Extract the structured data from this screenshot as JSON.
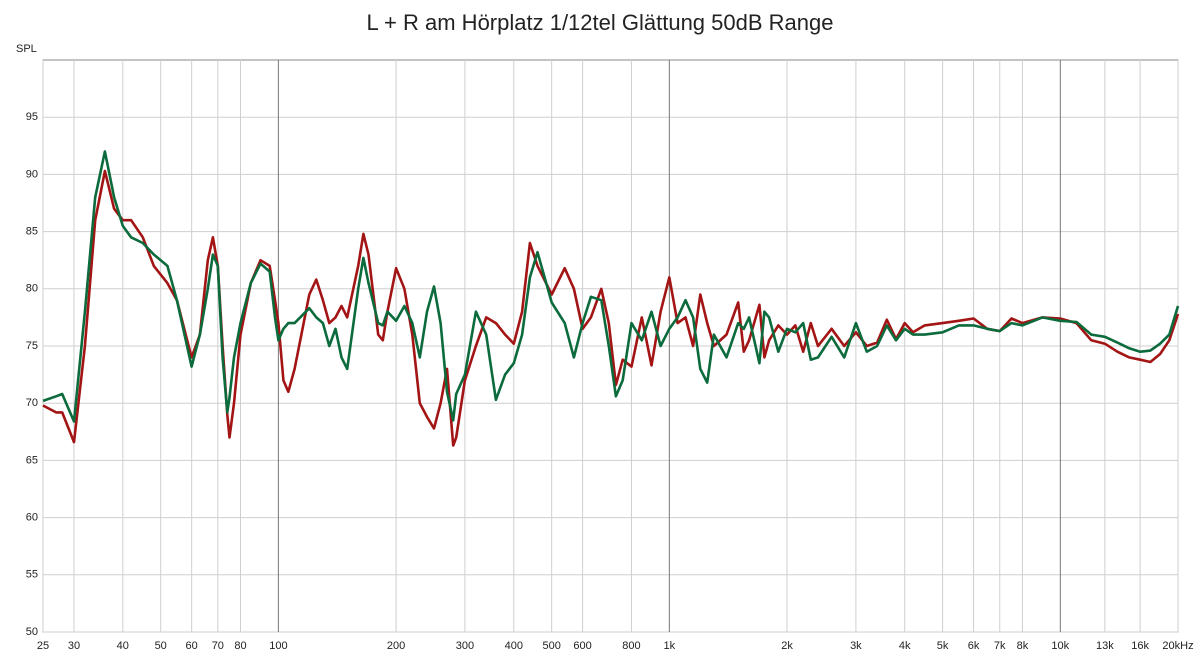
{
  "chart_data": {
    "type": "line",
    "title": "L + R am Hörplatz 1/12tel Glättung 50dB Range",
    "y_label": "SPL",
    "log_x": true,
    "grid": true,
    "xlim": [
      25,
      20000
    ],
    "ylim": [
      50,
      100
    ],
    "xticks": [
      25,
      30,
      40,
      50,
      60,
      70,
      80,
      100,
      200,
      300,
      400,
      500,
      600,
      800,
      {
        "value": 1000,
        "label": "1k"
      },
      {
        "value": 2000,
        "label": "2k"
      },
      {
        "value": 3000,
        "label": "3k"
      },
      {
        "value": 4000,
        "label": "4k"
      },
      {
        "value": 5000,
        "label": "5k"
      },
      {
        "value": 6000,
        "label": "6k"
      },
      {
        "value": 7000,
        "label": "7k"
      },
      {
        "value": 8000,
        "label": "8k"
      },
      {
        "value": 10000,
        "label": "10k"
      },
      {
        "value": 13000,
        "label": "13k"
      },
      {
        "value": 16000,
        "label": "16k"
      },
      {
        "value": 20000,
        "label": "20kHz"
      }
    ],
    "yticks": [
      50,
      55,
      60,
      65,
      70,
      75,
      80,
      85,
      90,
      95
    ],
    "x": [
      25,
      27,
      28,
      30,
      32,
      34,
      36,
      38,
      40,
      42,
      45,
      48,
      52,
      55,
      60,
      63,
      66,
      68,
      70,
      72,
      74,
      75,
      77,
      80,
      85,
      90,
      95,
      98,
      100,
      103,
      106,
      110,
      120,
      125,
      130,
      135,
      140,
      145,
      150,
      160,
      165,
      170,
      180,
      185,
      190,
      200,
      210,
      220,
      230,
      240,
      250,
      260,
      270,
      280,
      285,
      300,
      320,
      340,
      360,
      380,
      400,
      420,
      440,
      460,
      500,
      540,
      570,
      600,
      630,
      670,
      700,
      730,
      760,
      800,
      850,
      900,
      950,
      1000,
      1050,
      1100,
      1150,
      1200,
      1250,
      1300,
      1400,
      1500,
      1550,
      1600,
      1700,
      1750,
      1800,
      1900,
      2000,
      2100,
      2200,
      2300,
      2400,
      2600,
      2800,
      3000,
      3200,
      3400,
      3600,
      3800,
      4000,
      4200,
      4500,
      5000,
      5500,
      6000,
      6500,
      7000,
      7500,
      8000,
      9000,
      10000,
      11000,
      12000,
      13000,
      14000,
      15000,
      16000,
      17000,
      18000,
      19000,
      20000
    ],
    "series": [
      {
        "color": "#a31414",
        "values": [
          69.8,
          69.2,
          69.2,
          66.6,
          75,
          86,
          90.3,
          87,
          86,
          86,
          84.5,
          82,
          80.5,
          79,
          74,
          76,
          82.5,
          84.5,
          82,
          75,
          69,
          67,
          70,
          76,
          80.5,
          82.5,
          82,
          79,
          77,
          72,
          71,
          73,
          79.5,
          80.8,
          79,
          77,
          77.5,
          78.5,
          77.5,
          82,
          84.8,
          83,
          76,
          75.5,
          78,
          81.8,
          80,
          76,
          70,
          68.8,
          67.8,
          70,
          73,
          66.3,
          67,
          72,
          75,
          77.5,
          77,
          76,
          75.2,
          78,
          84,
          82,
          79.5,
          81.8,
          80,
          76.5,
          77.5,
          80,
          77,
          71.6,
          73.8,
          73.2,
          77.5,
          73.3,
          78,
          81,
          77,
          77.5,
          75,
          79.5,
          77,
          75,
          76,
          78.8,
          74.5,
          75.5,
          78.6,
          74,
          75.5,
          76.8,
          76,
          76.8,
          74.5,
          77,
          75,
          76.5,
          75,
          76.2,
          75,
          75.3,
          77.3,
          75.6,
          77,
          76.2,
          76.8,
          77,
          77.2,
          77.4,
          76.5,
          76.3,
          77.4,
          77,
          77.5,
          77.4,
          77,
          75.5,
          75.2,
          74.5,
          74,
          73.8,
          73.6,
          74.3,
          75.5,
          77.8
        ]
      },
      {
        "color": "#0b6b3c",
        "values": [
          70.2,
          70.6,
          70.8,
          68.4,
          78,
          88,
          92,
          88,
          85.5,
          84.5,
          84,
          83,
          82,
          79,
          73.2,
          76,
          80,
          83,
          82,
          74,
          69.2,
          70.5,
          74,
          77,
          80.5,
          82.2,
          81.5,
          77.5,
          75.5,
          76.5,
          77,
          77,
          78.3,
          77.5,
          77,
          75,
          76.5,
          74,
          73,
          80,
          82.7,
          80.5,
          77,
          76.8,
          78,
          77.2,
          78.5,
          77,
          74,
          78,
          80.2,
          77,
          71,
          68.5,
          70.8,
          72.5,
          78,
          76,
          70.3,
          72.5,
          73.5,
          76,
          81,
          83.2,
          78.8,
          77,
          74,
          77,
          79.3,
          79,
          75,
          70.6,
          72,
          77,
          75.5,
          78,
          75,
          76.5,
          77.5,
          79,
          77.5,
          73,
          71.8,
          76,
          74,
          77,
          76.5,
          77.5,
          73.5,
          78,
          77.5,
          74.5,
          76.5,
          76.2,
          77,
          73.8,
          74,
          75.8,
          74,
          77,
          74.5,
          75,
          76.8,
          75.5,
          76.5,
          76,
          76,
          76.2,
          76.8,
          76.8,
          76.5,
          76.3,
          77,
          76.8,
          77.5,
          77.2,
          77.1,
          76,
          75.8,
          75.3,
          74.8,
          74.5,
          74.6,
          75.2,
          76,
          78.5
        ]
      }
    ]
  }
}
